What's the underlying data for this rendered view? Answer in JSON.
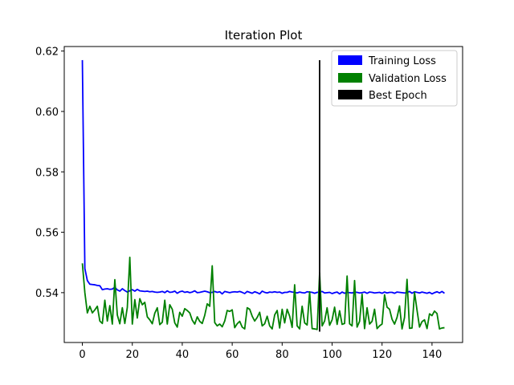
{
  "chart_data": {
    "type": "line",
    "title": "Iteration Plot",
    "xlabel": "",
    "ylabel": "",
    "xlim": [
      -7.25,
      152.25
    ],
    "ylim": [
      0.5235,
      0.6215
    ],
    "xticks": [
      0,
      20,
      40,
      60,
      80,
      100,
      120,
      140
    ],
    "yticks": [
      0.54,
      0.56,
      0.58,
      0.6,
      0.62
    ],
    "ytick_labels": [
      "0.54",
      "0.56",
      "0.58",
      "0.60",
      "0.62"
    ],
    "grid": false,
    "legend_position": "top-right",
    "series": [
      {
        "name": "Training Loss",
        "color": "#0000ff",
        "values": [
          0.617,
          0.548,
          0.544,
          0.5428,
          0.5427,
          0.5426,
          0.5424,
          0.5423,
          0.541,
          0.5412,
          0.5413,
          0.5411,
          0.5412,
          0.5418,
          0.5409,
          0.5405,
          0.5413,
          0.5407,
          0.5402,
          0.5406,
          0.541,
          0.5405,
          0.5411,
          0.5406,
          0.5405,
          0.5404,
          0.5405,
          0.5403,
          0.5404,
          0.5402,
          0.5401,
          0.5402,
          0.5404,
          0.54,
          0.5406,
          0.5401,
          0.5402,
          0.5405,
          0.5398,
          0.5403,
          0.5405,
          0.5401,
          0.5403,
          0.54,
          0.5402,
          0.5406,
          0.54,
          0.5401,
          0.5403,
          0.5405,
          0.5403,
          0.54,
          0.5401,
          0.5404,
          0.5401,
          0.5403,
          0.5396,
          0.5404,
          0.5402,
          0.54,
          0.5402,
          0.5403,
          0.5402,
          0.5404,
          0.5401,
          0.5397,
          0.5404,
          0.5401,
          0.5398,
          0.5403,
          0.54,
          0.5396,
          0.5405,
          0.5401,
          0.5399,
          0.5402,
          0.5401,
          0.5403,
          0.5401,
          0.5402,
          0.5398,
          0.5401,
          0.5401,
          0.5404,
          0.5402,
          0.5401,
          0.5399,
          0.5402,
          0.54,
          0.5399,
          0.5403,
          0.5402,
          0.5401,
          0.5398,
          0.5401,
          0.5402,
          0.5404,
          0.5399,
          0.54,
          0.5401,
          0.5397,
          0.54,
          0.5402,
          0.5396,
          0.5402,
          0.5398,
          0.5401,
          0.54,
          0.5399,
          0.5402,
          0.5401,
          0.5399,
          0.54,
          0.5402,
          0.5398,
          0.5402,
          0.5401,
          0.5399,
          0.54,
          0.5401,
          0.5398,
          0.5402,
          0.5399,
          0.5401,
          0.5401,
          0.5398,
          0.5402,
          0.5401,
          0.54,
          0.5399,
          0.54,
          0.5404,
          0.5398,
          0.5403,
          0.5401,
          0.5399,
          0.5402,
          0.54,
          0.5398,
          0.5401,
          0.5396,
          0.54,
          0.5403,
          0.5399,
          0.5404,
          0.5398
        ]
      },
      {
        "name": "Validation Loss",
        "color": "#008000",
        "values": [
          0.5497,
          0.54,
          0.5333,
          0.5355,
          0.5333,
          0.5343,
          0.5355,
          0.5306,
          0.5298,
          0.5375,
          0.5306,
          0.5357,
          0.5296,
          0.5443,
          0.5326,
          0.5297,
          0.535,
          0.5298,
          0.5351,
          0.5517,
          0.5296,
          0.5377,
          0.5316,
          0.538,
          0.536,
          0.5368,
          0.532,
          0.531,
          0.5297,
          0.5332,
          0.535,
          0.5294,
          0.5302,
          0.5375,
          0.5296,
          0.536,
          0.5345,
          0.53,
          0.5286,
          0.5335,
          0.5322,
          0.5347,
          0.5341,
          0.5333,
          0.5309,
          0.5296,
          0.532,
          0.5305,
          0.5298,
          0.5325,
          0.5363,
          0.5355,
          0.5489,
          0.5301,
          0.529,
          0.5296,
          0.5287,
          0.5306,
          0.5341,
          0.5338,
          0.5343,
          0.5284,
          0.5297,
          0.5305,
          0.5286,
          0.528,
          0.535,
          0.5345,
          0.5322,
          0.5306,
          0.5318,
          0.5335,
          0.529,
          0.5297,
          0.5322,
          0.529,
          0.528,
          0.5326,
          0.5341,
          0.5283,
          0.5345,
          0.53,
          0.5345,
          0.5322,
          0.5285,
          0.5426,
          0.529,
          0.528,
          0.5355,
          0.53,
          0.5293,
          0.5403,
          0.5281,
          0.528,
          0.5278,
          0.5465,
          0.529,
          0.5306,
          0.535,
          0.5292,
          0.531,
          0.5352,
          0.5295,
          0.534,
          0.5295,
          0.5298,
          0.5455,
          0.5297,
          0.529,
          0.544,
          0.5286,
          0.5305,
          0.5395,
          0.5281,
          0.535,
          0.5296,
          0.5305,
          0.5345,
          0.5281,
          0.529,
          0.5296,
          0.5393,
          0.5352,
          0.5345,
          0.5312,
          0.5296,
          0.5318,
          0.5356,
          0.528,
          0.5318,
          0.5444,
          0.5282,
          0.5283,
          0.5401,
          0.5342,
          0.5286,
          0.5304,
          0.531,
          0.5281,
          0.533,
          0.5324,
          0.5339,
          0.5331,
          0.528,
          0.5283,
          0.5284
        ]
      },
      {
        "name": "Best Epoch",
        "color": "#000000",
        "type": "vline",
        "x": 95,
        "y_range": [
          0.5271,
          0.617
        ]
      }
    ]
  }
}
